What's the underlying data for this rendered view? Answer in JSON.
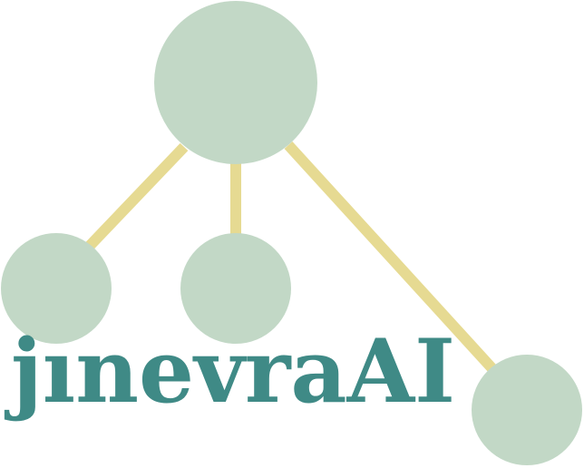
{
  "logo": {
    "wordmark": "jınevraAI",
    "colors": {
      "node": "#c2d8c6",
      "edge": "#e6da92",
      "text": "#3f8a86",
      "background": "#ffffff"
    }
  }
}
